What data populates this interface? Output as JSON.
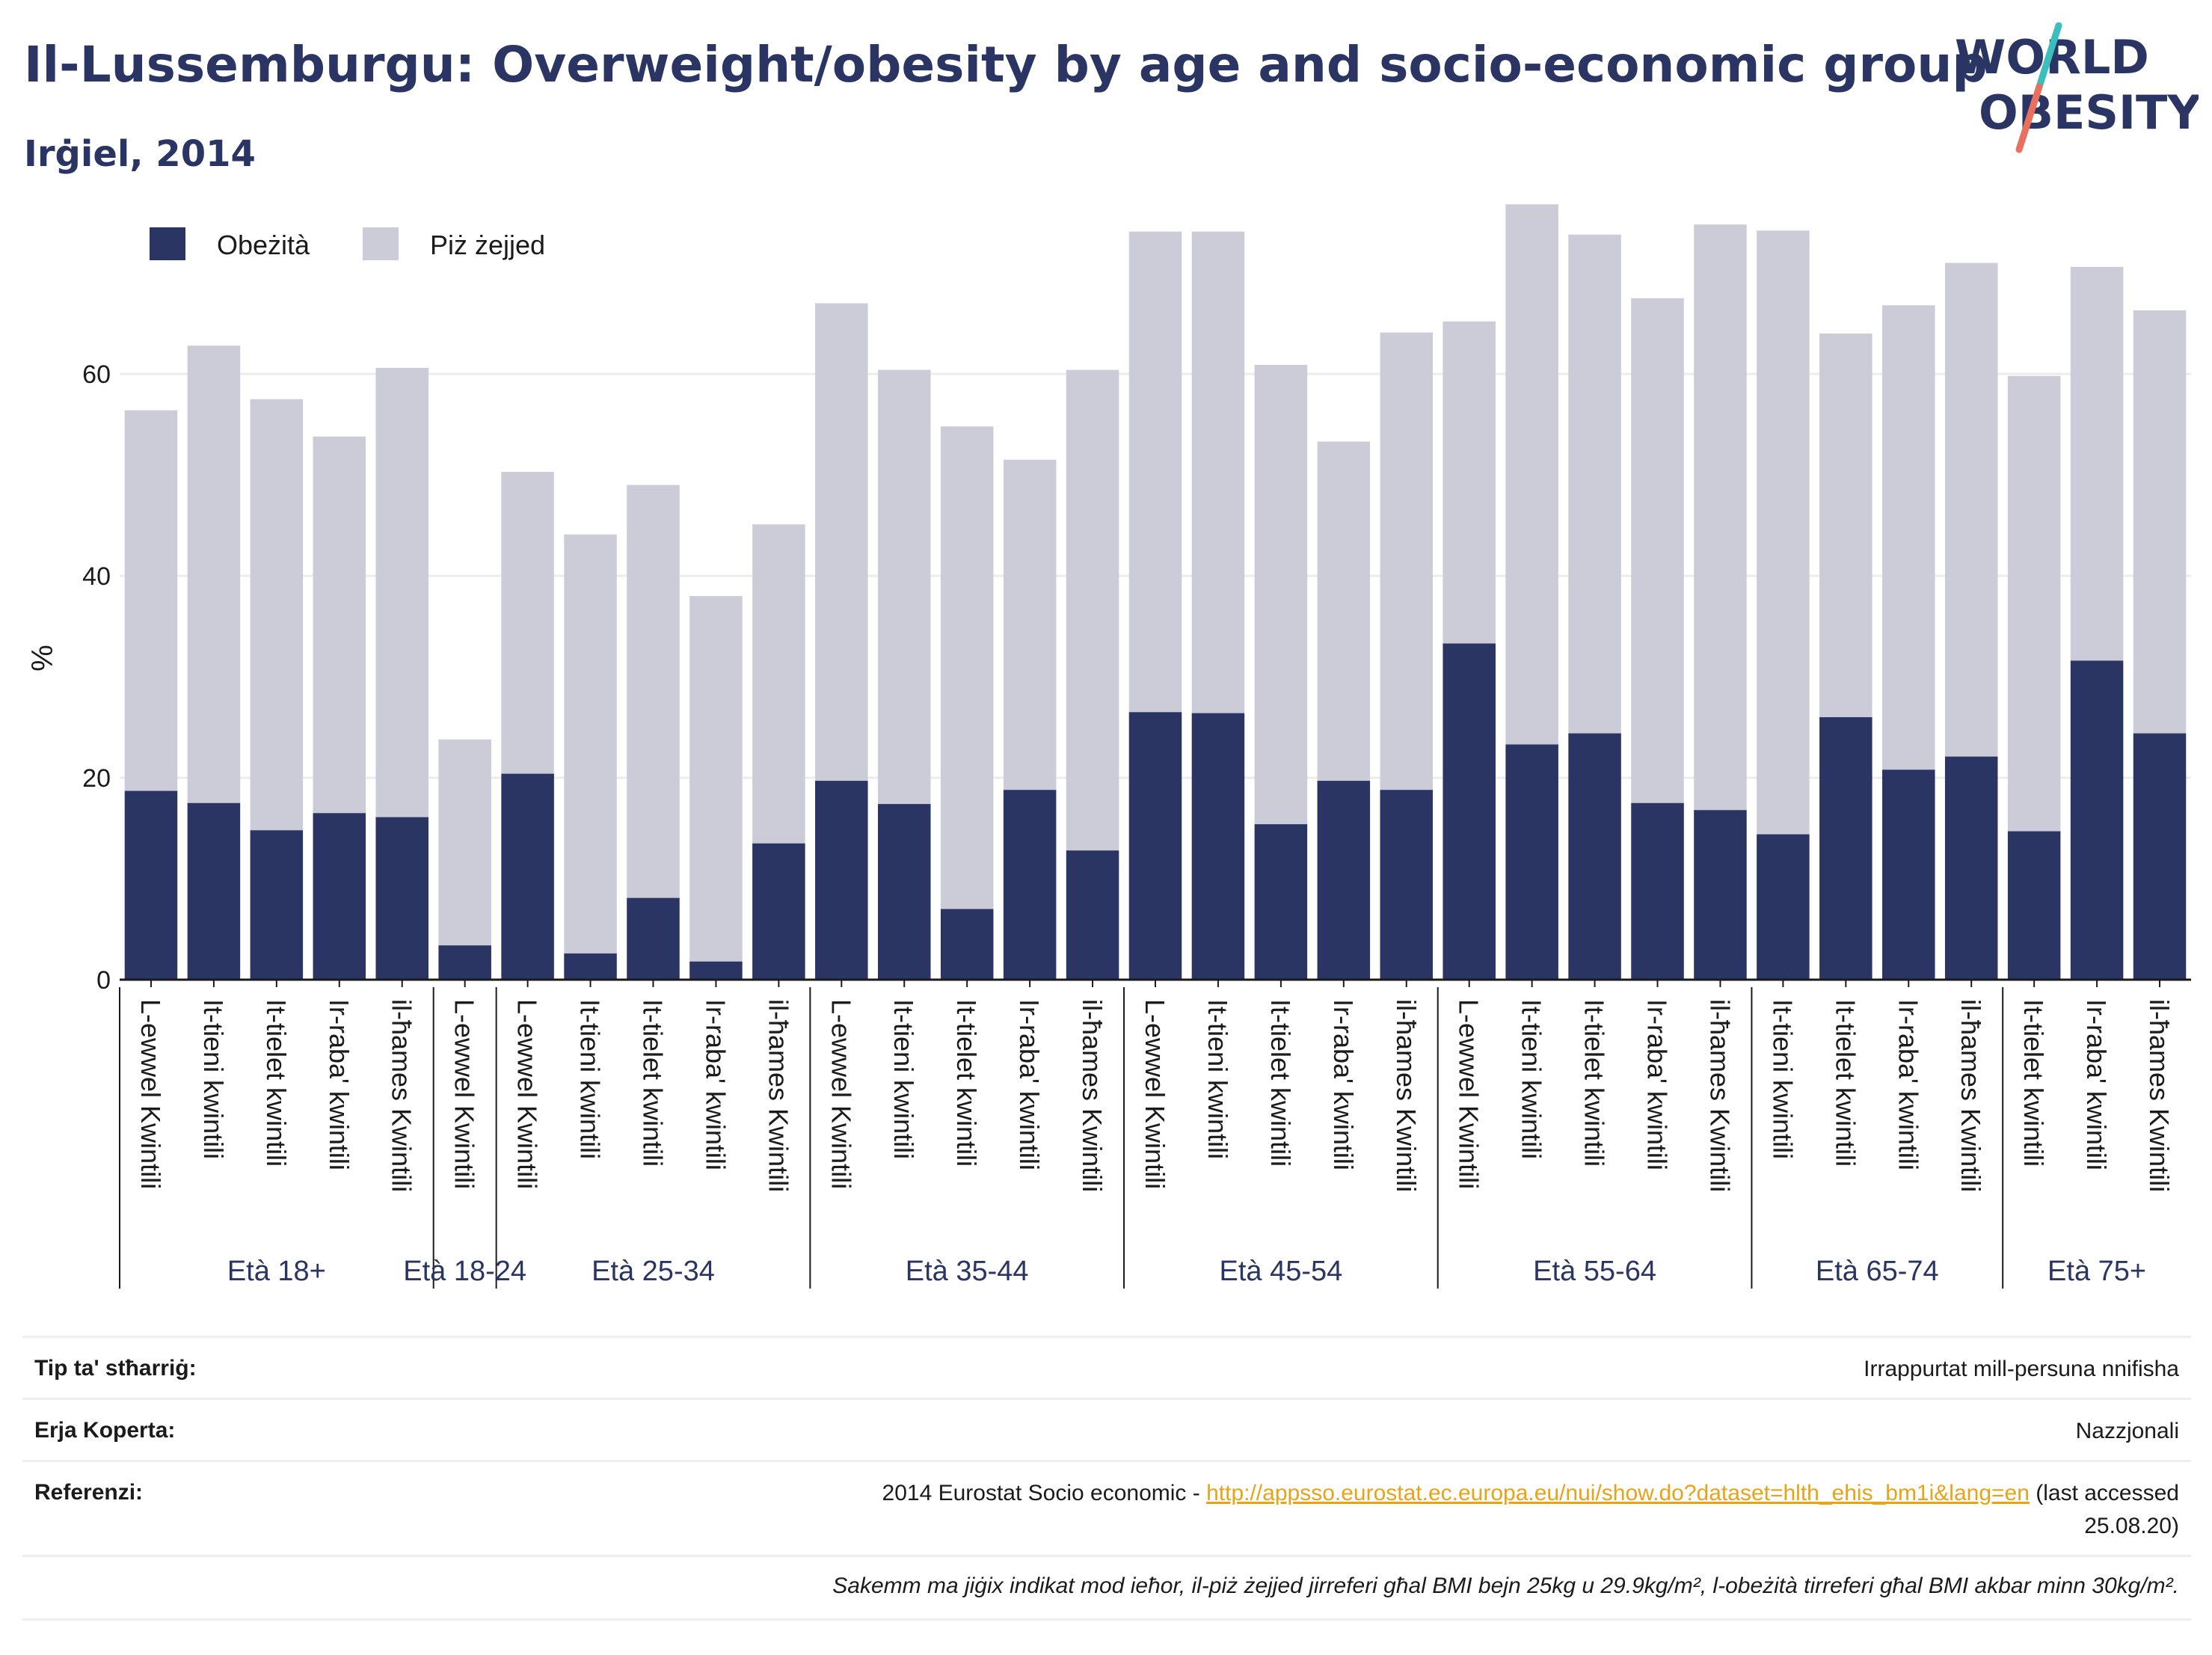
{
  "header": {
    "title": "Il-Lussemburgu: Overweight/obesity by age and socio-economic group",
    "subtitle": "Irġiel, 2014",
    "logo_top": "WORLD",
    "logo_bottom": "OBESITY"
  },
  "colors": {
    "obesity": "#2a3563",
    "overweight": "#cbccd8",
    "title": "#2a3563",
    "logo_slash_top": "#3bbfbd",
    "logo_slash_bottom": "#e8705f",
    "link": "#e8a317"
  },
  "chart_data": {
    "type": "bar",
    "stacked": true,
    "ylabel": "%",
    "ylim": [
      0,
      80
    ],
    "yticks": [
      0,
      20,
      40,
      60
    ],
    "grid": true,
    "legend_position": "top-left",
    "series": [
      {
        "name": "Obeżità",
        "color": "#2a3563"
      },
      {
        "name": "Piż żejjed",
        "color": "#cbccd8"
      }
    ],
    "groups": [
      {
        "label": "Età 18+",
        "bars": [
          {
            "label": "L-ewwel Kwintili",
            "obesity": 18.7,
            "total": 56.4
          },
          {
            "label": "It-tieni kwintili",
            "obesity": 17.5,
            "total": 62.8
          },
          {
            "label": "It-tielet kwintili",
            "obesity": 14.8,
            "total": 57.5
          },
          {
            "label": "Ir-raba' kwintili",
            "obesity": 16.5,
            "total": 53.8
          },
          {
            "label": "il-ħames Kwintili",
            "obesity": 16.1,
            "total": 60.6
          }
        ]
      },
      {
        "label": "Età 18-24",
        "bars": [
          {
            "label": "L-ewwel Kwintili",
            "obesity": 3.4,
            "total": 23.8
          }
        ]
      },
      {
        "label": "Età 25-34",
        "bars": [
          {
            "label": "L-ewwel Kwintili",
            "obesity": 20.4,
            "total": 50.3
          },
          {
            "label": "It-tieni kwintili",
            "obesity": 2.6,
            "total": 44.1
          },
          {
            "label": "It-tielet kwintili",
            "obesity": 8.1,
            "total": 49.0
          },
          {
            "label": "Ir-raba' kwintili",
            "obesity": 1.8,
            "total": 38.0
          },
          {
            "label": "il-ħames Kwintili",
            "obesity": 13.5,
            "total": 45.1
          }
        ]
      },
      {
        "label": "Età 35-44",
        "bars": [
          {
            "label": "L-ewwel Kwintili",
            "obesity": 19.7,
            "total": 67.0
          },
          {
            "label": "It-tieni kwintili",
            "obesity": 17.4,
            "total": 60.4
          },
          {
            "label": "It-tielet kwintili",
            "obesity": 7.0,
            "total": 54.8
          },
          {
            "label": "Ir-raba' kwintili",
            "obesity": 18.8,
            "total": 51.5
          },
          {
            "label": "il-ħames Kwintili",
            "obesity": 12.8,
            "total": 60.4
          }
        ]
      },
      {
        "label": "Età 45-54",
        "bars": [
          {
            "label": "L-ewwel Kwintili",
            "obesity": 26.5,
            "total": 74.1
          },
          {
            "label": "It-tieni kwintili",
            "obesity": 26.4,
            "total": 74.1
          },
          {
            "label": "It-tielet kwintili",
            "obesity": 15.4,
            "total": 60.9
          },
          {
            "label": "Ir-raba' kwintili",
            "obesity": 19.7,
            "total": 53.3
          },
          {
            "label": "il-ħames Kwintili",
            "obesity": 18.8,
            "total": 64.1
          }
        ]
      },
      {
        "label": "Età 55-64",
        "bars": [
          {
            "label": "L-ewwel Kwintili",
            "obesity": 33.3,
            "total": 65.2
          },
          {
            "label": "It-tieni kwintili",
            "obesity": 23.3,
            "total": 76.8
          },
          {
            "label": "It-tielet kwintili",
            "obesity": 24.4,
            "total": 73.8
          },
          {
            "label": "Ir-raba' kwintili",
            "obesity": 17.5,
            "total": 67.5
          },
          {
            "label": "il-ħames Kwintili",
            "obesity": 16.8,
            "total": 74.8
          }
        ]
      },
      {
        "label": "Età 65-74",
        "bars": [
          {
            "label": "It-tieni kwintili",
            "obesity": 14.4,
            "total": 74.2
          },
          {
            "label": "It-tielet kwintili",
            "obesity": 26.0,
            "total": 64.0
          },
          {
            "label": "Ir-raba' kwintili",
            "obesity": 20.8,
            "total": 66.8
          },
          {
            "label": "il-ħames Kwintili",
            "obesity": 22.1,
            "total": 71.0
          }
        ]
      },
      {
        "label": "Età 75+",
        "bars": [
          {
            "label": "It-tielet kwintili",
            "obesity": 14.7,
            "total": 59.8
          },
          {
            "label": "Ir-raba' kwintili",
            "obesity": 31.6,
            "total": 70.6
          },
          {
            "label": "il-ħames Kwintili",
            "obesity": 24.4,
            "total": 66.3
          }
        ]
      }
    ]
  },
  "footer": {
    "rows": [
      {
        "label": "Tip ta' stħarriġ:",
        "value": "Irrappurtat mill-persuna nnifisha"
      },
      {
        "label": "Erja Koperta:",
        "value": "Nazzjonali"
      },
      {
        "label": "Referenzi:",
        "value_prefix": "2014 Eurostat Socio economic - ",
        "link": "http://appsso.eurostat.ec.europa.eu/nui/show.do?dataset=hlth_ehis_bm1i&lang=en",
        "value_suffix": " (last accessed",
        "value_line2": "25.08.20)"
      }
    ],
    "note": "Sakemm ma jiġix indikat mod ieħor, il-piż żejjed jirreferi għal BMI bejn 25kg u 29.9kg/m², l-obeżità tirreferi għal BMI akbar minn 30kg/m²."
  }
}
